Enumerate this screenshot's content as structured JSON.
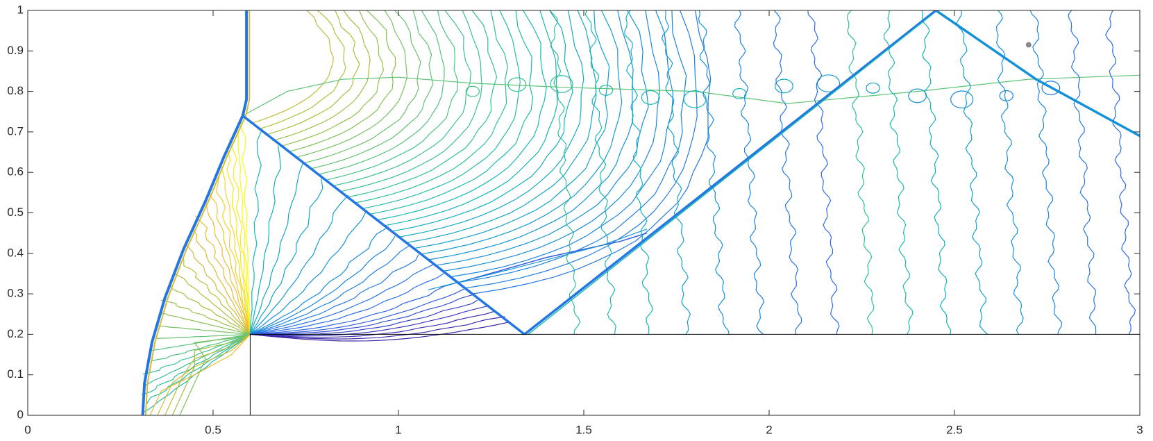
{
  "chart_data": {
    "type": "contour",
    "xlim": [
      0,
      3
    ],
    "ylim": [
      0,
      1
    ],
    "xticks": [
      0,
      0.5,
      1,
      1.5,
      2,
      2.5,
      3
    ],
    "yticks": [
      0,
      0.1,
      0.2,
      0.3,
      0.4,
      0.5,
      0.6,
      0.7,
      0.8,
      0.9,
      1
    ]
  }
}
